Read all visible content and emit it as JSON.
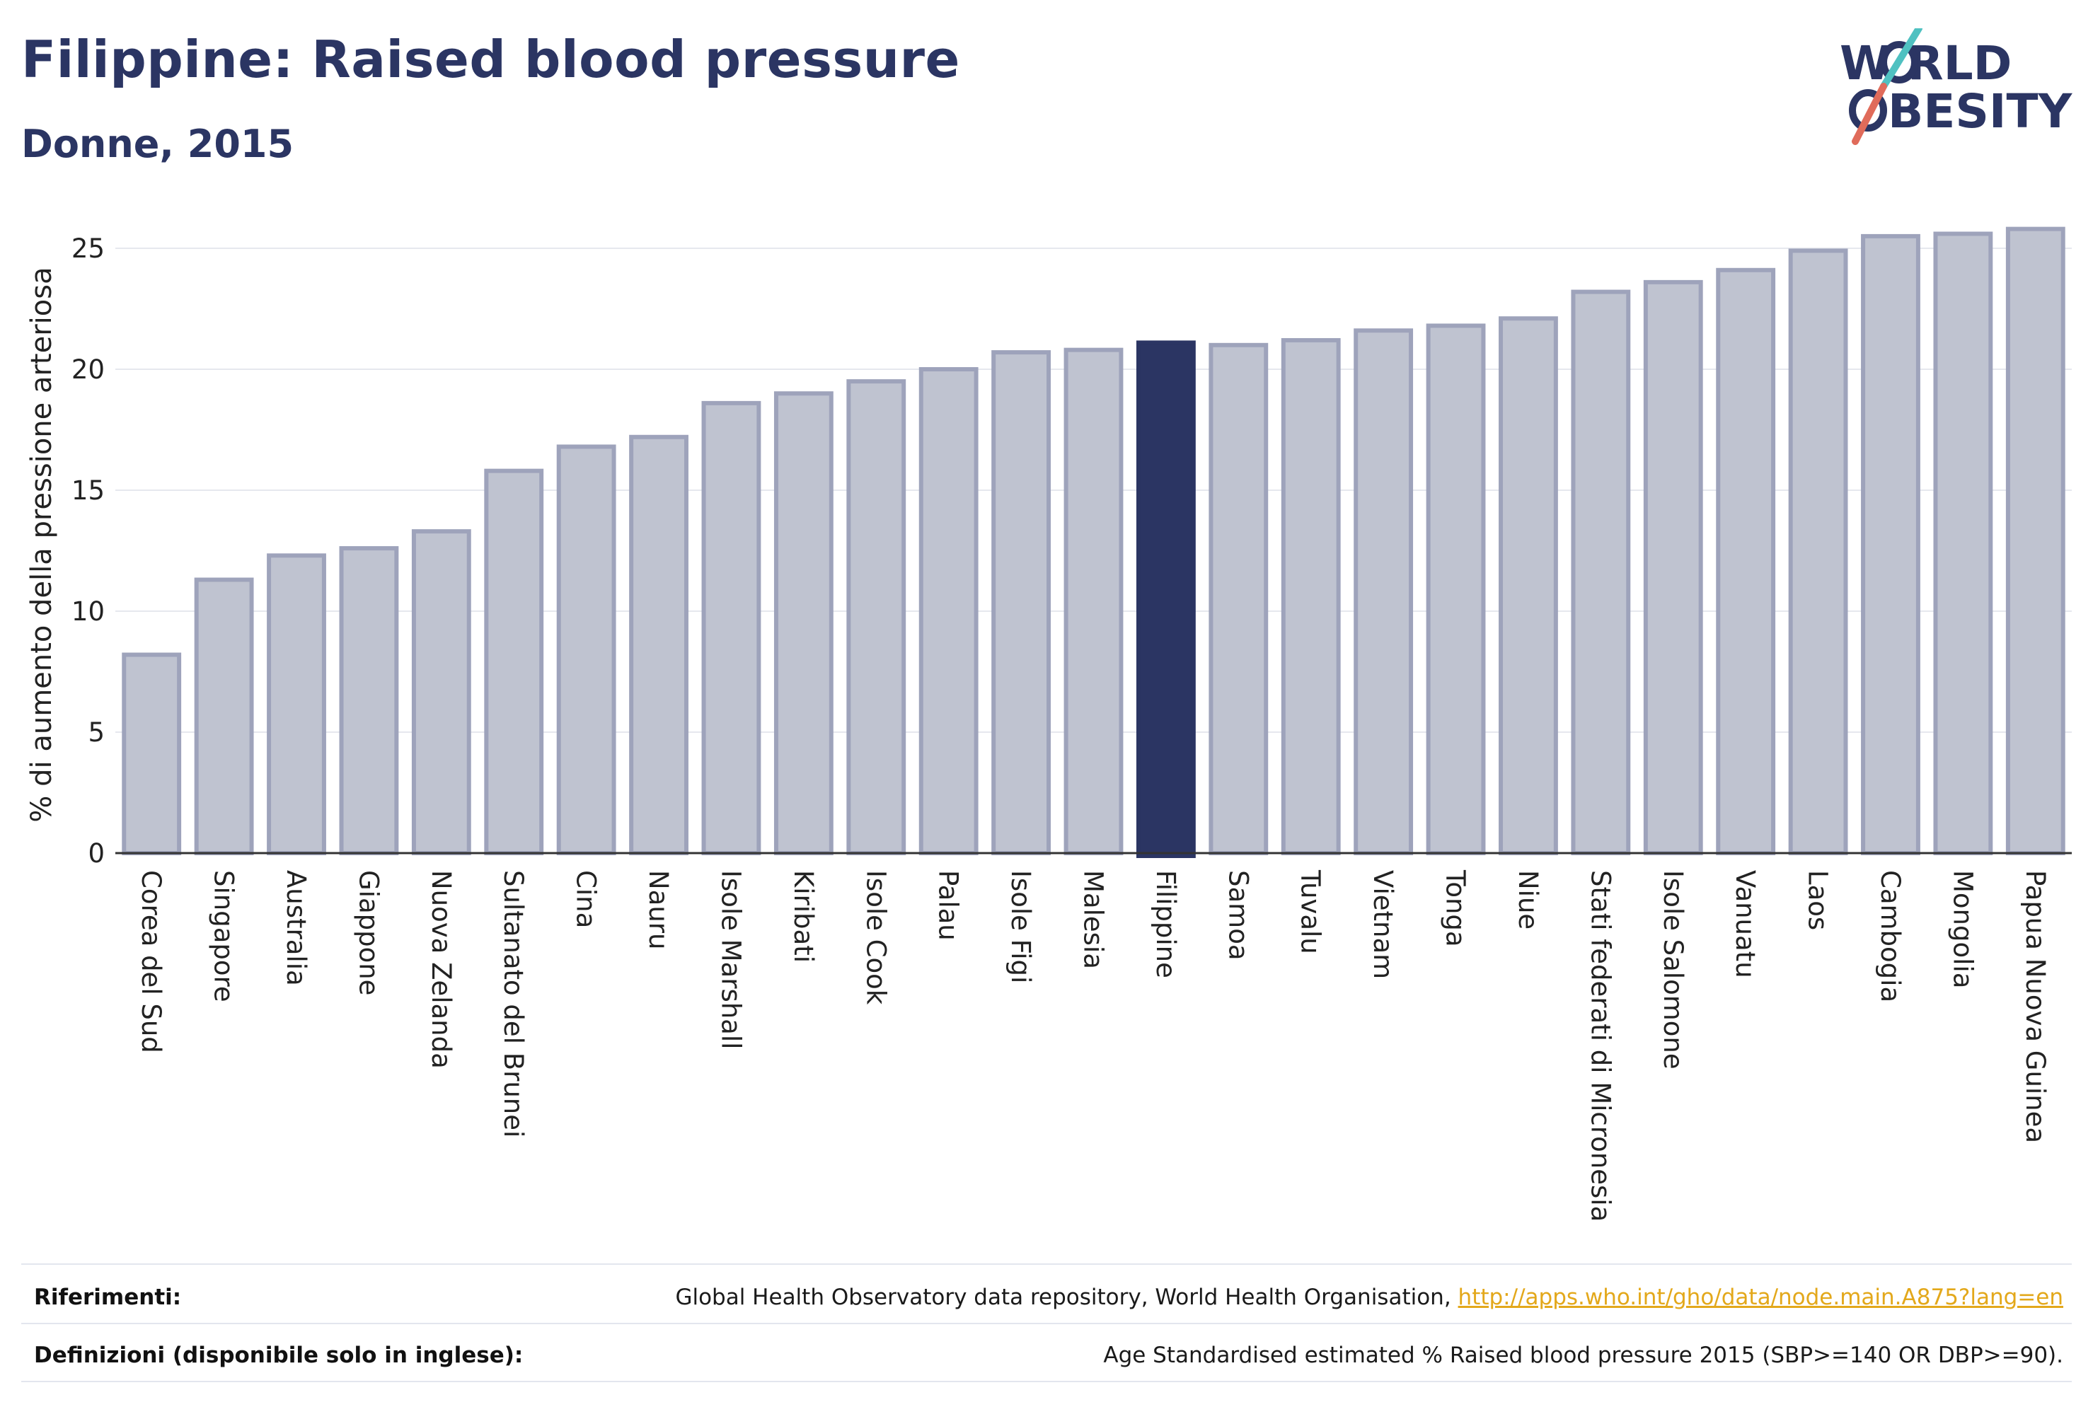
{
  "header": {
    "title": "Filippine: Raised blood pressure",
    "subtitle": "Donne, 2015"
  },
  "logo": {
    "line1": "W RLD",
    "line2": "BESITY",
    "text": "WORLD OBESITY",
    "colors": {
      "text": "#2b3563",
      "slash_top": "#4fc1c1",
      "slash_bottom": "#e06b5a"
    }
  },
  "chart_data": {
    "type": "bar",
    "ylabel": "% di aumento della pressione arteriosa",
    "xlabel": "",
    "ylim": [
      0,
      26.5
    ],
    "yticks": [
      0,
      5,
      10,
      15,
      20,
      25
    ],
    "grid": true,
    "highlight": "Filippine",
    "colors": {
      "bar": "#bfc3d0",
      "bar_border": "#9ea3bb",
      "highlight": "#2b3563",
      "grid": "#e6e8ee",
      "axis": "#333333"
    },
    "categories": [
      "Corea del Sud",
      "Singapore",
      "Australia",
      "Giappone",
      "Nuova Zelanda",
      "Sultanato del Brunei",
      "Cina",
      "Nauru",
      "Isole Marshall",
      "Kiribati",
      "Isole Cook",
      "Palau",
      "Isole Figi",
      "Malesia",
      "Filippine",
      "Samoa",
      "Tuvalu",
      "Vietnam",
      "Tonga",
      "Niue",
      "Stati federati di Micronesia",
      "Isole Salomone",
      "Vanuatu",
      "Laos",
      "Cambogia",
      "Mongolia",
      "Papua Nuova Guinea"
    ],
    "values": [
      8.2,
      11.3,
      12.3,
      12.6,
      13.3,
      15.8,
      16.8,
      17.2,
      18.6,
      19.0,
      19.5,
      20.0,
      20.7,
      20.8,
      21.1,
      21.0,
      21.2,
      21.6,
      21.8,
      22.1,
      23.2,
      23.6,
      24.1,
      24.9,
      25.5,
      25.6,
      25.8
    ]
  },
  "footer": {
    "references_label": "Riferimenti:",
    "references_text": "Global Health Observatory data repository, World Health Organisation, ",
    "references_link": "http://apps.who.int/gho/data/node.main.A875?lang=en",
    "definitions_label": "Definizioni (disponibile solo in inglese):",
    "definitions_text": "Age Standardised estimated % Raised blood pressure 2015 (SBP>=140 OR DBP>=90)."
  }
}
